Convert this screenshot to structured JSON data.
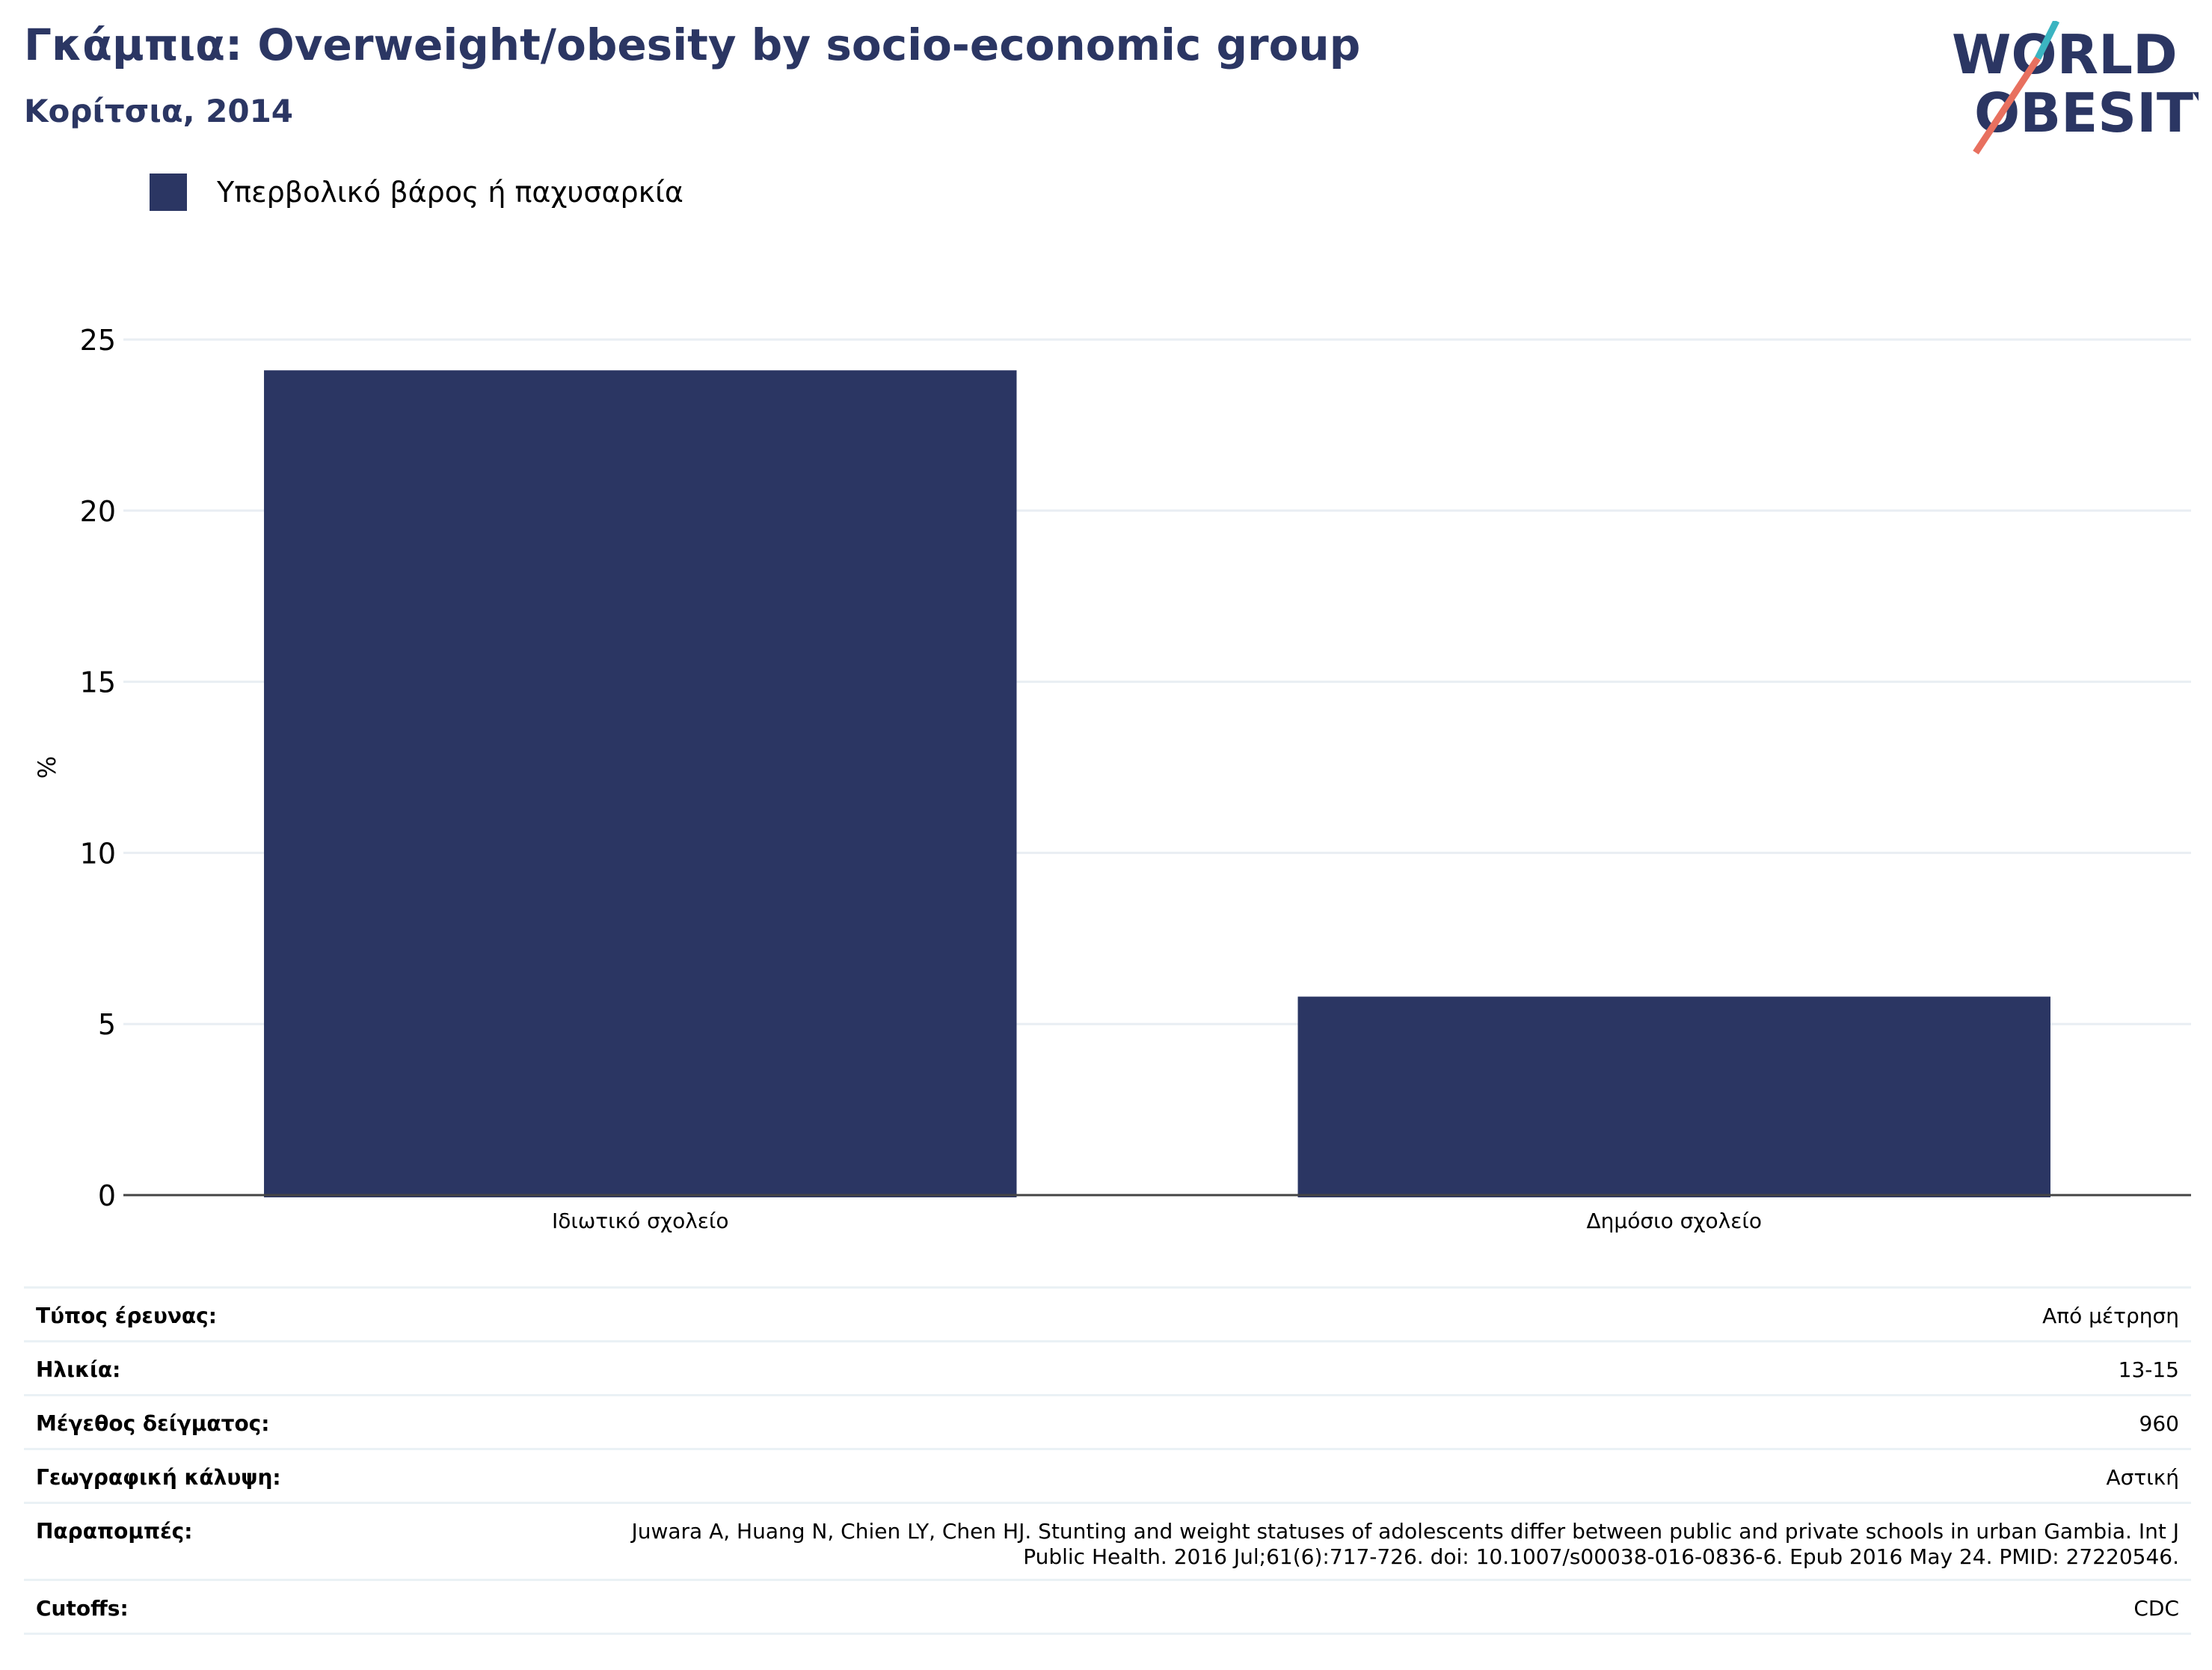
{
  "header": {
    "title": "Γκάμπια: Overweight/obesity by socio-economic group",
    "subtitle": "Κορίτσια, 2014"
  },
  "logo": {
    "line1": "WORLD",
    "line2": "OBESITY",
    "colors": {
      "navy": "#2b3663",
      "teal": "#3bb4c1",
      "coral": "#e8705f"
    }
  },
  "legend": {
    "label": "Υπερβολικό βάρος ή παχυσαρκία",
    "color": "#2b3663"
  },
  "chart_data": {
    "type": "bar",
    "categories": [
      "Ιδιωτικό σχολείο",
      "Δημόσιο σχολείο"
    ],
    "series": [
      {
        "name": "Υπερβολικό βάρος ή παχυσαρκία",
        "values": [
          24.1,
          5.8
        ],
        "color": "#2b3663"
      }
    ],
    "title": "Γκάμπια: Overweight/obesity by socio-economic group",
    "subtitle": "Κορίτσια, 2014",
    "xlabel": "",
    "ylabel": "%",
    "ylim": [
      0,
      25
    ],
    "yticks": [
      0,
      5,
      10,
      15,
      20,
      25
    ],
    "grid": true,
    "legend": "top-left"
  },
  "info": {
    "rows": [
      {
        "label": "Τύπος έρευνας:",
        "value": "Από μέτρηση"
      },
      {
        "label": "Ηλικία:",
        "value": "13-15"
      },
      {
        "label": "Μέγεθος δείγματος:",
        "value": "960"
      },
      {
        "label": "Γεωγραφική κάλυψη:",
        "value": "Αστική"
      },
      {
        "label": "Παραπομπές:",
        "value": "Juwara A, Huang N, Chien LY, Chen HJ. Stunting and weight statuses of adolescents differ between public and private schools in urban Gambia. Int J Public Health. 2016 Jul;61(6):717-726. doi: 10.1007/s00038-016-0836-6. Epub 2016 May 24. PMID: 27220546."
      },
      {
        "label": "Cutoffs:",
        "value": "CDC"
      }
    ]
  }
}
